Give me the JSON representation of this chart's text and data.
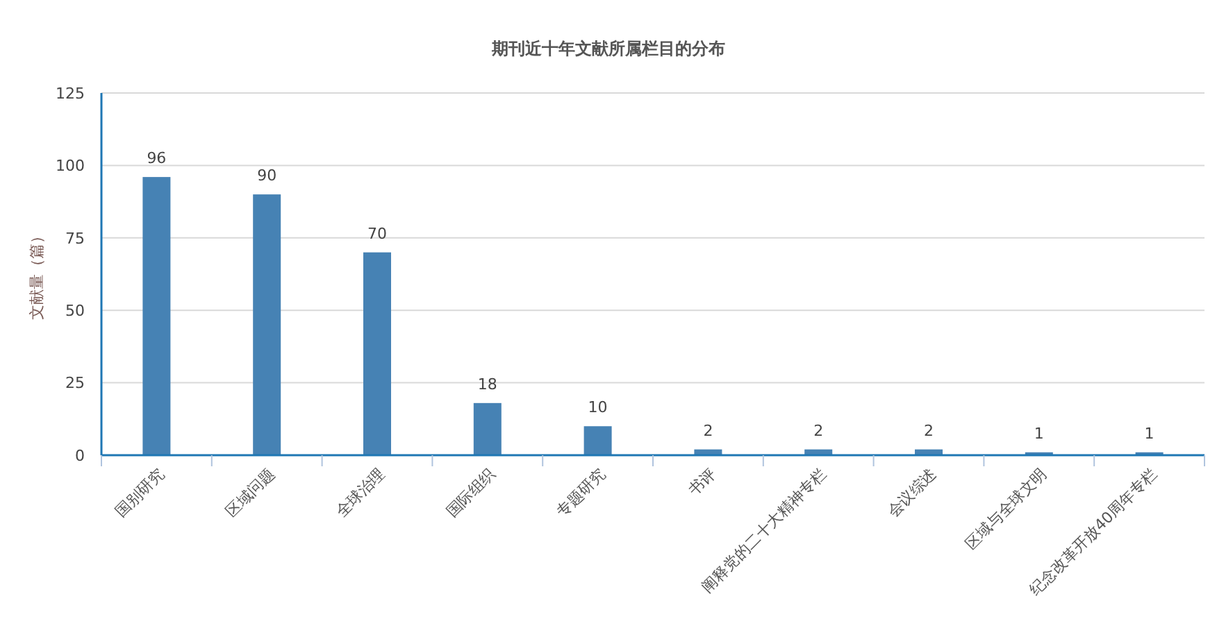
{
  "chart_data": {
    "type": "bar",
    "title": "期刊近十年文献所属栏目的分布",
    "ylabel": "文献量（篇）",
    "categories": [
      "国别研究",
      "区域问题",
      "全球治理",
      "国际组织",
      "专题研究",
      "书评",
      "阐释党的二十大精神专栏",
      "会议综述",
      "区域与全球文明",
      "纪念改革开放40周年专栏"
    ],
    "values": [
      96,
      90,
      70,
      18,
      10,
      2,
      2,
      2,
      1,
      1
    ],
    "color": "#4682b4",
    "ylim": [
      0,
      125
    ],
    "yticks": [
      0,
      25,
      50,
      75,
      100,
      125
    ],
    "grid": "y",
    "data_labels": true
  }
}
